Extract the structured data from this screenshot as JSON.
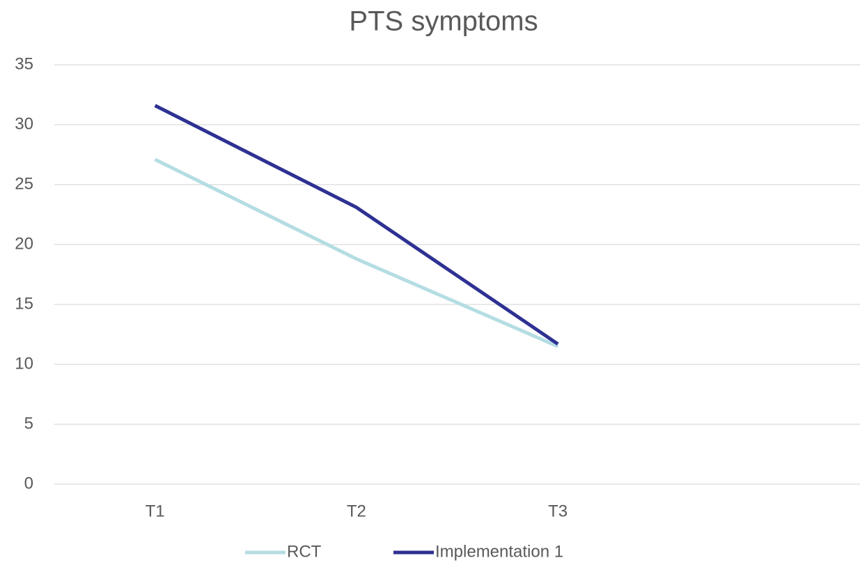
{
  "chart_data": {
    "type": "line",
    "title": "PTS symptoms",
    "categories": [
      "T1",
      "T2",
      "T3",
      null
    ],
    "series": [
      {
        "name": "RCT",
        "color": "#b4dde3",
        "values": [
          27.1,
          18.8,
          11.5,
          null
        ]
      },
      {
        "name": "Implementation 1",
        "color": "#2e3192",
        "values": [
          31.6,
          23.1,
          11.7,
          null
        ]
      }
    ],
    "ylim": [
      0,
      35
    ],
    "yticks": [
      0,
      5,
      10,
      15,
      20,
      25,
      30,
      35
    ],
    "grid": true,
    "legend": "bottom"
  }
}
